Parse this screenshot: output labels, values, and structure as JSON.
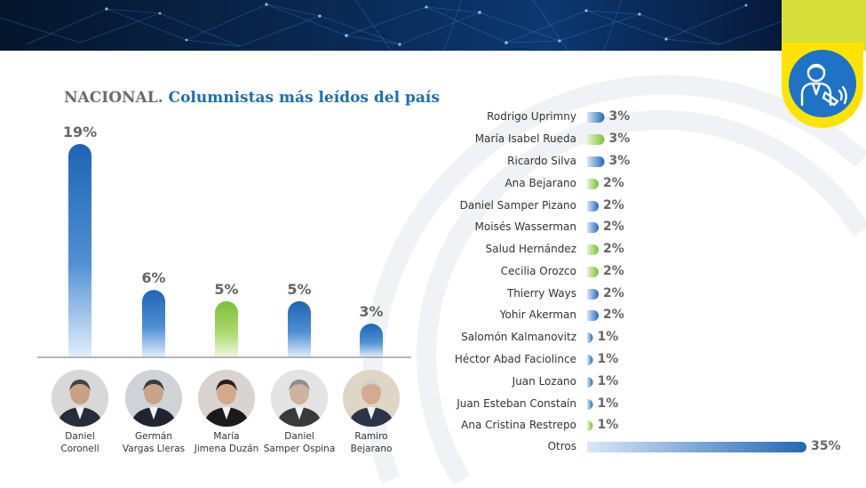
{
  "title": {
    "prefix": "NACIONAL.",
    "main": "Columnistas más leídos del país"
  },
  "colors": {
    "blue": "#2b74c4",
    "green": "#8cc63f",
    "accent_yellow": "#ffe300",
    "badge_blue": "#1e73c8"
  },
  "badge": {
    "icon": "columnist-speaker-icon"
  },
  "chart_data": [
    {
      "type": "bar",
      "categories": [
        "Daniel Coronell",
        "Germán Vargas Lleras",
        "María Jimena Duzán",
        "Daniel Samper Ospina",
        "Ramiro Bejarano"
      ],
      "values": [
        19,
        6,
        5,
        5,
        3
      ],
      "value_labels": [
        "19%",
        "6%",
        "5%",
        "5%",
        "3%"
      ],
      "bar_colors": [
        "blue",
        "blue",
        "green",
        "blue",
        "blue"
      ],
      "caption_lines": [
        [
          "Daniel",
          "Coronell"
        ],
        [
          "Germán",
          "Vargas Lleras"
        ],
        [
          "María",
          "Jimena Duzán"
        ],
        [
          "Daniel",
          "Samper Ospina"
        ],
        [
          "Ramiro",
          "Bejarano"
        ]
      ],
      "ylim": [
        0,
        19
      ]
    },
    {
      "type": "bar",
      "orientation": "horizontal",
      "categories": [
        "Rodrigo Uprimny",
        "María Isabel Rueda",
        "Ricardo Silva",
        "Ana Bejarano",
        "Daniel Samper Pizano",
        "Moisés Wasserman",
        "Salud Hernández",
        "Cecilia Orozco",
        "Thierry Ways",
        "Yohir Akerman",
        "Salomón Kalmanovitz",
        "Héctor Abad Faciolince",
        "Juan Lozano",
        "Juan Esteban Constaín",
        "Ana Cristina Restrepo",
        "Otros"
      ],
      "values": [
        3,
        3,
        3,
        2,
        2,
        2,
        2,
        2,
        2,
        2,
        1,
        1,
        1,
        1,
        1,
        35
      ],
      "value_labels": [
        "3%",
        "3%",
        "3%",
        "2%",
        "2%",
        "2%",
        "2%",
        "2%",
        "2%",
        "2%",
        "1%",
        "1%",
        "1%",
        "1%",
        "1%",
        "35%"
      ],
      "bar_colors": [
        "blue",
        "green",
        "blue",
        "green",
        "blue",
        "blue",
        "green",
        "green",
        "blue",
        "blue",
        "blue",
        "blue",
        "blue",
        "blue",
        "green",
        "blue"
      ],
      "xlim": [
        0,
        35
      ]
    }
  ]
}
